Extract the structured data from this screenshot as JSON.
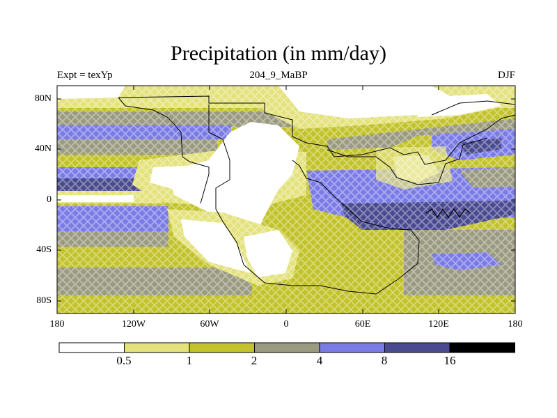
{
  "title": "Precipitation (in mm/day)",
  "subtitle_left": "Expt = texYp",
  "subtitle_center": "204_9_MaBP",
  "subtitle_right": "DJF",
  "y_labels": [
    "80N",
    "40N",
    "0",
    "40S",
    "80S"
  ],
  "x_labels": [
    "180",
    "120W",
    "60W",
    "0",
    "60E",
    "120E",
    "180"
  ],
  "colorbar": {
    "levels": [
      "0.5",
      "1",
      "2",
      "4",
      "8",
      "16"
    ],
    "colors": [
      "#ffffff",
      "#e3e27c",
      "#c2c22a",
      "#9a9a80",
      "#7b7be6",
      "#4a4a90",
      "#000000"
    ]
  }
}
